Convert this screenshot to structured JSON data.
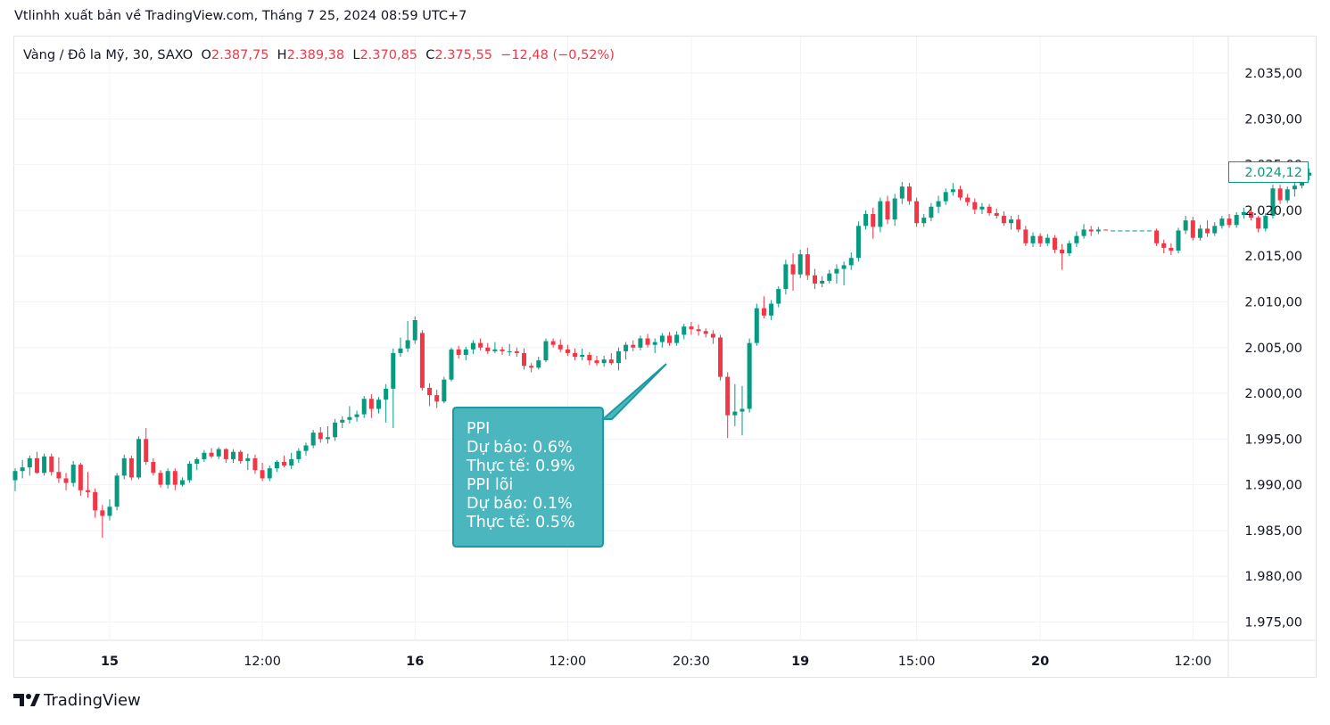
{
  "header": {
    "title": "Vtlinhh xuất bản về TradingView.com, Tháng 7 25, 2024 08:59 UTC+7"
  },
  "legend": {
    "symbol": "Vàng / Đô la Mỹ, 30, SAXO",
    "o_label": "O",
    "o_value": "2.387,75",
    "h_label": "H",
    "h_value": "2.389,38",
    "l_label": "L",
    "l_value": "2.370,85",
    "c_label": "C",
    "c_value": "2.375,55",
    "change": "−12,48 (−0,52%)"
  },
  "last_price": "2.024,12",
  "callout": {
    "lines": [
      "PPI",
      "Dự báo: 0.6%",
      "Thực tế: 0.9%",
      "PPI lõi",
      "Dự báo: 0.1%",
      "Thực tế: 0.5%"
    ]
  },
  "brand": {
    "name": "TradingView"
  },
  "colors": {
    "up": "#089981",
    "down": "#f23645",
    "callout_fill": "#4cb6be",
    "callout_border": "#1a9ba3",
    "grid": "#f0f3fa"
  },
  "chart_data": {
    "type": "candlestick",
    "interval": "30",
    "ylim": [
      1973,
      2039
    ],
    "y_ticks": [
      2035,
      2030,
      2025,
      2020,
      2015,
      2010,
      2005,
      2000,
      1995,
      1990,
      1985,
      1980,
      1975
    ],
    "y_tick_labels": [
      "2.035,00",
      "2.030,00",
      "2.025,00",
      "2.020,00",
      "2.015,00",
      "2.010,00",
      "2.005,00",
      "2.000,00",
      "1.995,00",
      "1.990,00",
      "1.985,00",
      "1.980,00",
      "1.975,00"
    ],
    "x_ticks": [
      {
        "label": "15",
        "bold": true,
        "index": 13
      },
      {
        "label": "12:00",
        "bold": false,
        "index": 34
      },
      {
        "label": "16",
        "bold": true,
        "index": 55
      },
      {
        "label": "12:00",
        "bold": false,
        "index": 76
      },
      {
        "label": "20:30",
        "bold": false,
        "index": 93
      },
      {
        "label": "19",
        "bold": true,
        "index": 108
      },
      {
        "label": "15:00",
        "bold": false,
        "index": 124
      },
      {
        "label": "20",
        "bold": true,
        "index": 141
      },
      {
        "label": "12:00",
        "bold": false,
        "index": 162
      }
    ],
    "last_price": 2024.12,
    "candles": [
      [
        1990.5,
        1991.8,
        1989.3,
        1991.5
      ],
      [
        1991.5,
        1992.7,
        1990.7,
        1991.9
      ],
      [
        1991.9,
        1993.2,
        1991.0,
        1992.9
      ],
      [
        1992.9,
        1993.6,
        1991.2,
        1991.3
      ],
      [
        1991.3,
        1993.4,
        1991.0,
        1993.1
      ],
      [
        1993.1,
        1993.4,
        1991.0,
        1991.4
      ],
      [
        1991.4,
        1993.0,
        1990.2,
        1990.7
      ],
      [
        1990.7,
        1991.3,
        1989.4,
        1990.2
      ],
      [
        1990.2,
        1992.6,
        1989.8,
        1992.2
      ],
      [
        1992.2,
        1992.4,
        1988.8,
        1989.4
      ],
      [
        1989.4,
        1991.4,
        1988.6,
        1989.2
      ],
      [
        1989.2,
        1989.6,
        1986.4,
        1987.2
      ],
      [
        1987.2,
        1987.8,
        1984.2,
        1986.6
      ],
      [
        1986.6,
        1988.4,
        1986.1,
        1987.6
      ],
      [
        1987.6,
        1991.3,
        1987.2,
        1991.0
      ],
      [
        1991.0,
        1993.3,
        1990.6,
        1992.9
      ],
      [
        1992.9,
        1993.2,
        1990.5,
        1990.8
      ],
      [
        1990.8,
        1995.3,
        1990.6,
        1995.0
      ],
      [
        1995.0,
        1996.2,
        1992.2,
        1992.5
      ],
      [
        1992.5,
        1992.9,
        1991.0,
        1991.3
      ],
      [
        1991.3,
        1991.6,
        1989.7,
        1990.0
      ],
      [
        1990.0,
        1991.8,
        1989.6,
        1991.5
      ],
      [
        1991.5,
        1991.8,
        1989.4,
        1990.0
      ],
      [
        1990.0,
        1990.8,
        1989.8,
        1990.5
      ],
      [
        1990.5,
        1992.6,
        1990.2,
        1992.3
      ],
      [
        1992.3,
        1993.0,
        1991.6,
        1992.8
      ],
      [
        1992.8,
        1993.8,
        1992.5,
        1993.5
      ],
      [
        1993.5,
        1994.0,
        1992.9,
        1993.1
      ],
      [
        1993.1,
        1994.1,
        1992.8,
        1993.9
      ],
      [
        1993.9,
        1994.0,
        1992.4,
        1992.8
      ],
      [
        1992.8,
        1993.9,
        1992.4,
        1993.6
      ],
      [
        1993.6,
        1993.8,
        1992.3,
        1992.6
      ],
      [
        1992.6,
        1993.4,
        1991.6,
        1992.9
      ],
      [
        1992.9,
        1993.3,
        1991.2,
        1991.6
      ],
      [
        1991.6,
        1992.4,
        1990.4,
        1990.7
      ],
      [
        1990.7,
        1992.1,
        1990.4,
        1991.8
      ],
      [
        1991.8,
        1992.7,
        1991.4,
        1992.5
      ],
      [
        1992.5,
        1993.2,
        1991.9,
        1992.1
      ],
      [
        1992.1,
        1993.5,
        1991.7,
        1992.8
      ],
      [
        1992.8,
        1994.0,
        1992.4,
        1993.7
      ],
      [
        1993.7,
        1994.6,
        1993.2,
        1994.3
      ],
      [
        1994.3,
        1996.0,
        1994.0,
        1995.7
      ],
      [
        1995.7,
        1996.3,
        1994.6,
        1995.0
      ],
      [
        1995.0,
        1996.4,
        1994.5,
        1995.2
      ],
      [
        1995.2,
        1997.2,
        1994.8,
        1996.8
      ],
      [
        1996.8,
        1997.5,
        1996.2,
        1997.1
      ],
      [
        1997.1,
        1998.6,
        1996.7,
        1997.4
      ],
      [
        1997.4,
        1998.1,
        1996.9,
        1997.7
      ],
      [
        1997.7,
        1999.7,
        1997.3,
        1999.4
      ],
      [
        1999.4,
        1999.9,
        1997.3,
        1998.3
      ],
      [
        1998.3,
        1999.6,
        1997.8,
        1999.3
      ],
      [
        1999.3,
        2001.0,
        1996.8,
        2000.5
      ],
      [
        2000.5,
        2004.9,
        1996.2,
        2004.4
      ],
      [
        2004.4,
        2006.1,
        2004.0,
        2004.9
      ],
      [
        2004.9,
        2007.9,
        2004.5,
        2005.8
      ],
      [
        2005.8,
        2008.4,
        2005.4,
        2008.0
      ],
      [
        2006.6,
        2006.9,
        2000.3,
        2000.6
      ],
      [
        2000.6,
        2001.1,
        1998.6,
        1999.8
      ],
      [
        1999.8,
        2000.4,
        1998.4,
        1999.1
      ],
      [
        1999.1,
        2001.8,
        1998.9,
        2001.5
      ],
      [
        2001.5,
        2005.0,
        2001.3,
        2004.8
      ],
      [
        2004.8,
        2005.2,
        2003.8,
        2004.2
      ],
      [
        2004.2,
        2005.1,
        2003.6,
        2004.8
      ],
      [
        2004.8,
        2005.8,
        2004.3,
        2005.5
      ],
      [
        2005.5,
        2006.0,
        2004.7,
        2005.0
      ],
      [
        2005.0,
        2005.5,
        2004.3,
        2004.6
      ],
      [
        2004.6,
        2005.6,
        2004.4,
        2004.8
      ],
      [
        2004.8,
        2005.1,
        2004.2,
        2004.6
      ],
      [
        2004.6,
        2005.4,
        2004.1,
        2004.6
      ],
      [
        2004.6,
        2005.0,
        2004.0,
        2004.4
      ],
      [
        2004.4,
        2004.9,
        2002.6,
        2003.0
      ],
      [
        2003.0,
        2003.3,
        2002.3,
        2002.8
      ],
      [
        2002.8,
        2004.0,
        2002.6,
        2003.6
      ],
      [
        2003.6,
        2006.0,
        2003.4,
        2005.7
      ],
      [
        2005.7,
        2006.0,
        2005.0,
        2005.3
      ],
      [
        2005.3,
        2005.9,
        2004.5,
        2004.8
      ],
      [
        2004.8,
        2005.3,
        2004.1,
        2004.4
      ],
      [
        2004.4,
        2004.9,
        2003.6,
        2004.0
      ],
      [
        2004.0,
        2004.9,
        2003.6,
        2004.2
      ],
      [
        2004.2,
        2004.5,
        2003.1,
        2003.6
      ],
      [
        2003.6,
        2004.1,
        2003.0,
        2003.3
      ],
      [
        2003.3,
        2004.1,
        2002.9,
        2003.7
      ],
      [
        2003.7,
        2004.4,
        2003.1,
        2003.3
      ],
      [
        2003.3,
        2005.0,
        2002.5,
        2004.6
      ],
      [
        2004.6,
        2005.6,
        2003.7,
        2005.3
      ],
      [
        2005.3,
        2005.8,
        2004.6,
        2005.0
      ],
      [
        2005.0,
        2006.3,
        2004.7,
        2006.0
      ],
      [
        2006.0,
        2006.5,
        2005.0,
        2005.3
      ],
      [
        2005.3,
        2006.0,
        2004.4,
        2005.6
      ],
      [
        2005.6,
        2006.6,
        2005.0,
        2006.3
      ],
      [
        2006.3,
        2006.7,
        2005.2,
        2005.5
      ],
      [
        2005.5,
        2006.8,
        2005.2,
        2006.4
      ],
      [
        2006.4,
        2007.6,
        2005.9,
        2007.3
      ],
      [
        2007.3,
        2007.8,
        2006.4,
        2007.0
      ],
      [
        2007.0,
        2007.5,
        2006.3,
        2006.8
      ],
      [
        2006.8,
        2007.1,
        2006.1,
        2006.5
      ],
      [
        2006.5,
        2006.9,
        2005.4,
        2006.1
      ],
      [
        2006.1,
        2006.4,
        2001.4,
        2001.8
      ],
      [
        2001.8,
        2002.3,
        1995.1,
        1997.6
      ],
      [
        1997.6,
        2001.0,
        1996.4,
        1998.0
      ],
      [
        1998.0,
        2000.8,
        1995.4,
        1998.3
      ],
      [
        1998.3,
        2006.0,
        1997.9,
        2005.5
      ],
      [
        2005.5,
        2009.8,
        2005.2,
        2009.3
      ],
      [
        2009.3,
        2010.6,
        2008.2,
        2008.5
      ],
      [
        2008.5,
        2010.2,
        2008.0,
        2009.8
      ],
      [
        2009.8,
        2011.7,
        2009.4,
        2011.4
      ],
      [
        2011.4,
        2014.6,
        2010.8,
        2014.1
      ],
      [
        2014.1,
        2015.3,
        2011.2,
        2013.0
      ],
      [
        2013.0,
        2015.7,
        2012.6,
        2015.2
      ],
      [
        2015.2,
        2015.9,
        2012.4,
        2012.9
      ],
      [
        2012.9,
        2013.6,
        2011.4,
        2012.0
      ],
      [
        2012.0,
        2012.8,
        2011.6,
        2012.3
      ],
      [
        2012.3,
        2013.5,
        2012.0,
        2013.1
      ],
      [
        2013.1,
        2014.1,
        2012.0,
        2013.6
      ],
      [
        2013.6,
        2014.4,
        2011.8,
        2014.0
      ],
      [
        2014.0,
        2015.4,
        2013.5,
        2014.8
      ],
      [
        2014.8,
        2018.8,
        2014.4,
        2018.3
      ],
      [
        2018.3,
        2020.0,
        2017.9,
        2019.6
      ],
      [
        2019.6,
        2020.3,
        2016.9,
        2018.2
      ],
      [
        2018.2,
        2021.4,
        2017.6,
        2021.0
      ],
      [
        2021.0,
        2021.6,
        2018.5,
        2019.0
      ],
      [
        2019.0,
        2021.8,
        2018.3,
        2021.3
      ],
      [
        2021.3,
        2023.1,
        2020.7,
        2022.6
      ],
      [
        2022.6,
        2023.0,
        2020.6,
        2021.0
      ],
      [
        2021.0,
        2021.4,
        2018.2,
        2018.6
      ],
      [
        2018.6,
        2019.6,
        2018.2,
        2019.2
      ],
      [
        2019.2,
        2020.8,
        2018.8,
        2020.4
      ],
      [
        2020.4,
        2021.6,
        2019.7,
        2021.0
      ],
      [
        2021.0,
        2022.4,
        2020.6,
        2022.0
      ],
      [
        2022.0,
        2023.0,
        2021.6,
        2022.3
      ],
      [
        2022.3,
        2022.7,
        2021.1,
        2021.4
      ],
      [
        2021.4,
        2021.8,
        2020.5,
        2020.9
      ],
      [
        2020.9,
        2021.3,
        2019.6,
        2020.1
      ],
      [
        2020.1,
        2020.8,
        2019.6,
        2020.4
      ],
      [
        2020.4,
        2020.7,
        2019.4,
        2019.7
      ],
      [
        2019.7,
        2020.2,
        2019.1,
        2019.4
      ],
      [
        2019.4,
        2019.9,
        2018.3,
        2018.6
      ],
      [
        2018.6,
        2019.4,
        2017.9,
        2019.0
      ],
      [
        2019.0,
        2019.5,
        2017.6,
        2017.9
      ],
      [
        2017.9,
        2018.3,
        2016.1,
        2016.4
      ],
      [
        2016.4,
        2017.6,
        2016.0,
        2017.2
      ],
      [
        2017.2,
        2017.5,
        2016.0,
        2016.4
      ],
      [
        2016.4,
        2017.4,
        2016.1,
        2017.0
      ],
      [
        2017.0,
        2017.3,
        2015.3,
        2015.7
      ],
      [
        2015.7,
        2016.3,
        2013.5,
        2015.3
      ],
      [
        2015.3,
        2016.7,
        2015.0,
        2016.4
      ],
      [
        2016.4,
        2017.7,
        2016.0,
        2017.2
      ],
      [
        2017.2,
        2018.5,
        2016.9,
        2017.9
      ],
      [
        2017.9,
        2018.3,
        2017.2,
        2017.7
      ],
      [
        2017.7,
        2018.2,
        2017.4,
        2017.9
      ],
      [
        2017.9,
        2017.9,
        2017.8,
        2017.8
      ],
      [
        2017.8,
        2017.8,
        2017.8,
        2017.8
      ],
      [
        2017.8,
        2017.8,
        2017.8,
        2017.8
      ],
      [
        2017.8,
        2017.8,
        2017.8,
        2017.8
      ],
      [
        2017.8,
        2017.8,
        2017.8,
        2017.8
      ],
      [
        2017.8,
        2017.8,
        2017.8,
        2017.8
      ],
      [
        2017.8,
        2017.8,
        2017.8,
        2017.8
      ],
      [
        2017.8,
        2018.0,
        2016.1,
        2016.4
      ],
      [
        2016.4,
        2016.8,
        2015.3,
        2015.9
      ],
      [
        2015.9,
        2016.4,
        2015.1,
        2015.6
      ],
      [
        2015.6,
        2018.1,
        2015.3,
        2017.8
      ],
      [
        2017.8,
        2019.4,
        2017.4,
        2018.9
      ],
      [
        2018.9,
        2019.3,
        2016.7,
        2017.0
      ],
      [
        2017.0,
        2018.4,
        2016.7,
        2018.0
      ],
      [
        2018.0,
        2018.9,
        2017.1,
        2017.5
      ],
      [
        2017.5,
        2018.7,
        2017.2,
        2018.3
      ],
      [
        2018.3,
        2019.4,
        2018.0,
        2019.1
      ],
      [
        2019.1,
        2019.6,
        2018.1,
        2018.4
      ],
      [
        2018.4,
        2019.8,
        2018.1,
        2019.5
      ],
      [
        2019.5,
        2020.3,
        2019.1,
        2019.8
      ],
      [
        2019.8,
        2020.2,
        2018.9,
        2019.2
      ],
      [
        2019.2,
        2019.4,
        2017.6,
        2018.0
      ],
      [
        2018.0,
        2019.7,
        2017.7,
        2019.4
      ],
      [
        2019.4,
        2022.8,
        2019.1,
        2022.4
      ],
      [
        2022.4,
        2022.8,
        2020.7,
        2021.1
      ],
      [
        2021.1,
        2022.6,
        2020.8,
        2022.3
      ],
      [
        2022.3,
        2023.1,
        2021.5,
        2022.7
      ],
      [
        2022.7,
        2024.3,
        2022.4,
        2023.8
      ],
      [
        2023.8,
        2024.6,
        2023.3,
        2024.12
      ]
    ]
  }
}
